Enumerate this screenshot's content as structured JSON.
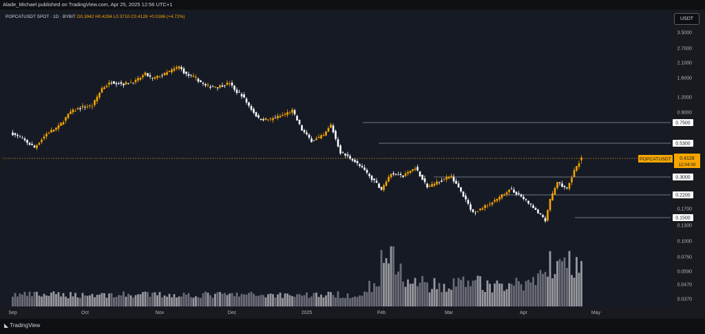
{
  "header": {
    "published": "Alade_Michael published on TradingView.com, Apr 25, 2025 12:56 UTC+1"
  },
  "legend": {
    "symbol": "POPCATUSDT SPOT · 1D · BYBIT",
    "open": "O0.3942",
    "high": "H0.4294",
    "low": "L0.3710",
    "close": "C0.4128",
    "change": "+0.0186 (+4.72%)"
  },
  "currency_button": "USDT",
  "footer": {
    "logo_text": "TradingView"
  },
  "colors": {
    "up": "#f7a600",
    "down": "#ffffff",
    "background": "#161a25",
    "volume_up": "#aeb0b4",
    "volume_down": "#787b86"
  },
  "chart_data": {
    "type": "candlestick",
    "symbol": "POPCATUSDT",
    "interval": "1D",
    "exchange": "BYBIT",
    "y_scale": "log",
    "y_ticks": [
      "3.5000",
      "2.7000",
      "2.1000",
      "1.6000",
      "1.2000",
      "0.9000",
      "0.1700",
      "0.1300",
      "0.1000",
      "0.0750",
      "0.0590",
      "0.0470",
      "0.0370"
    ],
    "y_ticks_upper": [
      3.5,
      2.7,
      2.1,
      1.6,
      1.2,
      0.9,
      0.17,
      0.13,
      0.1,
      0.075,
      0.059,
      0.047,
      0.037
    ],
    "x_tick_labels": [
      "Sep",
      "Oct",
      "Nov",
      "Dec",
      "2025",
      "Feb",
      "Mar",
      "Apr",
      "May"
    ],
    "current_price_label": {
      "symbol": "POPCATUSDT",
      "price": "0.4128",
      "time": "12:04:00"
    },
    "horizontal_levels": [
      {
        "price": 0.75,
        "label": "0.7500"
      },
      {
        "price": 0.53,
        "label": "0.5300"
      },
      {
        "price": 0.3,
        "label": "0.3000"
      },
      {
        "price": 0.22,
        "label": "0.2200"
      },
      {
        "price": 0.15,
        "label": "0.1500"
      }
    ],
    "close_anchors": [
      [
        "2024-09-01",
        0.62
      ],
      [
        "2024-09-06",
        0.55
      ],
      [
        "2024-09-10",
        0.49
      ],
      [
        "2024-09-15",
        0.62
      ],
      [
        "2024-09-20",
        0.7
      ],
      [
        "2024-09-25",
        0.9
      ],
      [
        "2024-09-30",
        0.98
      ],
      [
        "2024-10-04",
        1.0
      ],
      [
        "2024-10-08",
        1.35
      ],
      [
        "2024-10-12",
        1.5
      ],
      [
        "2024-10-17",
        1.45
      ],
      [
        "2024-10-22",
        1.52
      ],
      [
        "2024-10-26",
        1.72
      ],
      [
        "2024-10-29",
        1.58
      ],
      [
        "2024-11-03",
        1.72
      ],
      [
        "2024-11-09",
        1.95
      ],
      [
        "2024-11-12",
        1.7
      ],
      [
        "2024-11-16",
        1.6
      ],
      [
        "2024-11-20",
        1.4
      ],
      [
        "2024-11-25",
        1.38
      ],
      [
        "2024-11-30",
        1.48
      ],
      [
        "2024-12-02",
        1.3
      ],
      [
        "2024-12-05",
        1.2
      ],
      [
        "2024-12-08",
        1.0
      ],
      [
        "2024-12-12",
        0.8
      ],
      [
        "2024-12-17",
        0.79
      ],
      [
        "2024-12-22",
        0.85
      ],
      [
        "2024-12-26",
        0.92
      ],
      [
        "2024-12-30",
        0.66
      ],
      [
        "2025-01-03",
        0.55
      ],
      [
        "2025-01-08",
        0.6
      ],
      [
        "2025-01-11",
        0.72
      ],
      [
        "2025-01-15",
        0.45
      ],
      [
        "2025-01-20",
        0.4
      ],
      [
        "2025-01-25",
        0.33
      ],
      [
        "2025-02-01",
        0.24
      ],
      [
        "2025-02-05",
        0.32
      ],
      [
        "2025-02-10",
        0.3
      ],
      [
        "2025-02-15",
        0.35
      ],
      [
        "2025-02-20",
        0.25
      ],
      [
        "2025-02-26",
        0.28
      ],
      [
        "2025-03-02",
        0.3
      ],
      [
        "2025-03-06",
        0.23
      ],
      [
        "2025-03-11",
        0.16
      ],
      [
        "2025-03-16",
        0.18
      ],
      [
        "2025-03-21",
        0.2
      ],
      [
        "2025-03-26",
        0.24
      ],
      [
        "2025-03-30",
        0.22
      ],
      [
        "2025-04-03",
        0.19
      ],
      [
        "2025-04-07",
        0.16
      ],
      [
        "2025-04-10",
        0.14
      ],
      [
        "2025-04-12",
        0.2
      ],
      [
        "2025-04-15",
        0.27
      ],
      [
        "2025-04-19",
        0.24
      ],
      [
        "2025-04-22",
        0.33
      ],
      [
        "2025-04-25",
        0.4128
      ]
    ],
    "current": {
      "open": 0.3942,
      "high": 0.4294,
      "low": 0.371,
      "close": 0.4128
    }
  }
}
